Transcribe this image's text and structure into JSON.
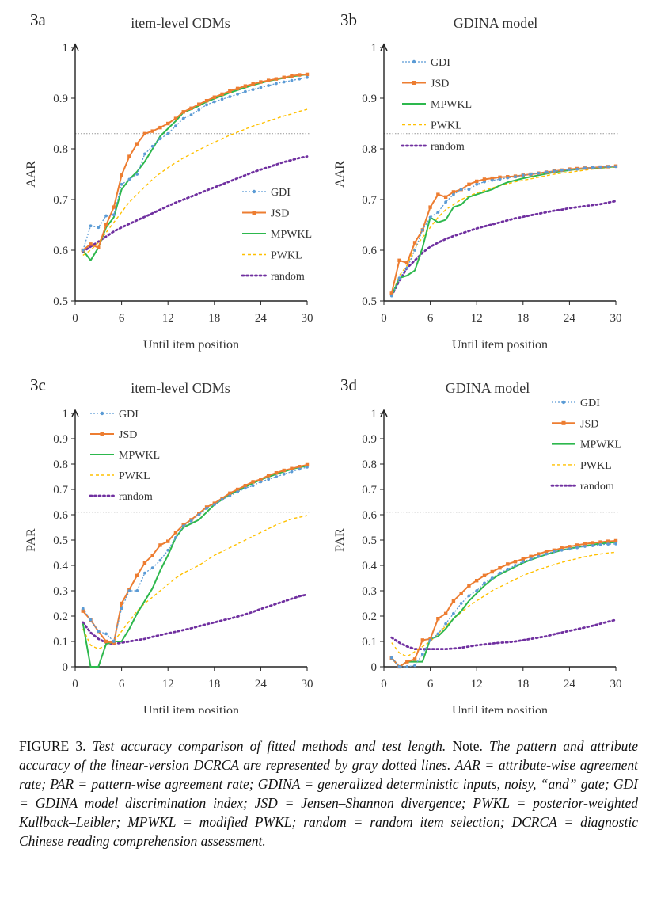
{
  "colors": {
    "GDI": "#5b9bd5",
    "JSD": "#ed7d31",
    "MPWKL": "#2db84d",
    "PWKL": "#ffc000",
    "random": "#7030a0",
    "reference": "#999999"
  },
  "chart_data": [
    {
      "id": "3a",
      "type": "line",
      "label": "3a",
      "title": "item-level CDMs",
      "xlabel": "Until item position",
      "ylabel": "AAR",
      "xlim": [
        0,
        30
      ],
      "ylim": [
        0.5,
        1.0
      ],
      "xticks": [
        "0",
        "6",
        "12",
        "18",
        "24",
        "30"
      ],
      "yticks": [
        "0.5",
        "0.6",
        "0.7",
        "0.8",
        "0.9",
        "1"
      ],
      "reference_line": 0.83,
      "legend_position": "center-right",
      "x": [
        1,
        2,
        3,
        4,
        5,
        6,
        7,
        8,
        9,
        10,
        11,
        12,
        13,
        14,
        15,
        16,
        17,
        18,
        19,
        20,
        21,
        22,
        23,
        24,
        25,
        26,
        27,
        28,
        29,
        30
      ],
      "series": [
        {
          "name": "GDI",
          "values": [
            0.6,
            0.648,
            0.645,
            0.668,
            0.67,
            0.73,
            0.74,
            0.75,
            0.79,
            0.805,
            0.82,
            0.83,
            0.845,
            0.86,
            0.867,
            0.877,
            0.887,
            0.893,
            0.898,
            0.903,
            0.908,
            0.913,
            0.917,
            0.921,
            0.925,
            0.929,
            0.932,
            0.935,
            0.938,
            0.941
          ]
        },
        {
          "name": "JSD",
          "values": [
            0.6,
            0.612,
            0.605,
            0.65,
            0.685,
            0.748,
            0.785,
            0.81,
            0.83,
            0.835,
            0.842,
            0.85,
            0.86,
            0.873,
            0.88,
            0.888,
            0.895,
            0.902,
            0.908,
            0.914,
            0.919,
            0.924,
            0.928,
            0.932,
            0.935,
            0.938,
            0.941,
            0.944,
            0.946,
            0.947
          ]
        },
        {
          "name": "MPWKL",
          "values": [
            0.6,
            0.58,
            0.605,
            0.645,
            0.665,
            0.72,
            0.74,
            0.755,
            0.775,
            0.8,
            0.825,
            0.84,
            0.855,
            0.872,
            0.878,
            0.885,
            0.893,
            0.899,
            0.905,
            0.911,
            0.916,
            0.921,
            0.926,
            0.93,
            0.934,
            0.937,
            0.94,
            0.943,
            0.945,
            0.947
          ]
        },
        {
          "name": "PWKL",
          "values": [
            0.59,
            0.6,
            0.615,
            0.635,
            0.655,
            0.675,
            0.695,
            0.71,
            0.725,
            0.74,
            0.752,
            0.763,
            0.773,
            0.782,
            0.79,
            0.798,
            0.806,
            0.813,
            0.82,
            0.827,
            0.833,
            0.839,
            0.845,
            0.85,
            0.855,
            0.86,
            0.865,
            0.869,
            0.874,
            0.878
          ]
        },
        {
          "name": "random",
          "values": [
            0.597,
            0.607,
            0.617,
            0.627,
            0.637,
            0.645,
            0.652,
            0.659,
            0.666,
            0.673,
            0.68,
            0.687,
            0.694,
            0.7,
            0.706,
            0.712,
            0.718,
            0.724,
            0.73,
            0.736,
            0.742,
            0.748,
            0.754,
            0.759,
            0.764,
            0.769,
            0.774,
            0.778,
            0.782,
            0.785
          ]
        }
      ]
    },
    {
      "id": "3b",
      "type": "line",
      "label": "3b",
      "title": "GDINA model",
      "xlabel": "Until item position",
      "ylabel": "AAR",
      "xlim": [
        0,
        30
      ],
      "ylim": [
        0.5,
        1.0
      ],
      "xticks": [
        "0",
        "6",
        "12",
        "18",
        "24",
        "30"
      ],
      "yticks": [
        "0.5",
        "0.6",
        "0.7",
        "0.8",
        "0.9",
        "1"
      ],
      "reference_line": 0.83,
      "legend_position": "top-left",
      "x": [
        1,
        2,
        3,
        4,
        5,
        6,
        7,
        8,
        9,
        10,
        11,
        12,
        13,
        14,
        15,
        16,
        17,
        18,
        19,
        20,
        21,
        22,
        23,
        24,
        25,
        26,
        27,
        28,
        29,
        30
      ],
      "series": [
        {
          "name": "GDI",
          "values": [
            0.51,
            0.545,
            0.565,
            0.6,
            0.64,
            0.665,
            0.675,
            0.695,
            0.71,
            0.72,
            0.72,
            0.73,
            0.735,
            0.738,
            0.74,
            0.743,
            0.745,
            0.748,
            0.75,
            0.752,
            0.754,
            0.756,
            0.758,
            0.759,
            0.76,
            0.762,
            0.763,
            0.764,
            0.765,
            0.765
          ]
        },
        {
          "name": "JSD",
          "values": [
            0.515,
            0.58,
            0.575,
            0.615,
            0.64,
            0.685,
            0.71,
            0.705,
            0.715,
            0.72,
            0.73,
            0.736,
            0.74,
            0.742,
            0.744,
            0.745,
            0.746,
            0.748,
            0.75,
            0.752,
            0.754,
            0.756,
            0.758,
            0.76,
            0.761,
            0.762,
            0.763,
            0.764,
            0.765,
            0.766
          ]
        },
        {
          "name": "MPWKL",
          "values": [
            0.51,
            0.545,
            0.55,
            0.56,
            0.605,
            0.665,
            0.655,
            0.66,
            0.685,
            0.69,
            0.705,
            0.71,
            0.715,
            0.72,
            0.728,
            0.734,
            0.738,
            0.742,
            0.745,
            0.748,
            0.751,
            0.754,
            0.756,
            0.758,
            0.76,
            0.761,
            0.762,
            0.763,
            0.764,
            0.765
          ]
        },
        {
          "name": "PWKL",
          "values": [
            0.51,
            0.55,
            0.57,
            0.605,
            0.625,
            0.645,
            0.665,
            0.68,
            0.69,
            0.7,
            0.707,
            0.713,
            0.718,
            0.723,
            0.727,
            0.731,
            0.735,
            0.738,
            0.741,
            0.744,
            0.747,
            0.75,
            0.752,
            0.754,
            0.756,
            0.758,
            0.76,
            0.762,
            0.763,
            0.764
          ]
        },
        {
          "name": "random",
          "values": [
            0.51,
            0.54,
            0.565,
            0.58,
            0.595,
            0.607,
            0.615,
            0.622,
            0.628,
            0.633,
            0.638,
            0.643,
            0.647,
            0.651,
            0.655,
            0.659,
            0.663,
            0.666,
            0.669,
            0.672,
            0.675,
            0.678,
            0.68,
            0.683,
            0.685,
            0.687,
            0.689,
            0.691,
            0.694,
            0.697
          ]
        }
      ]
    },
    {
      "id": "3c",
      "type": "line",
      "label": "3c",
      "title": "item-level CDMs",
      "xlabel": "Until item position",
      "ylabel": "PAR",
      "xlim": [
        0,
        30
      ],
      "ylim": [
        0,
        1.0
      ],
      "xticks": [
        "0",
        "6",
        "12",
        "18",
        "24",
        "30"
      ],
      "yticks": [
        "0",
        "0.1",
        "0.2",
        "0.3",
        "0.4",
        "0.5",
        "0.6",
        "0.7",
        "0.8",
        "0.9",
        "1"
      ],
      "reference_line": 0.61,
      "legend_position": "top-left",
      "x": [
        1,
        2,
        3,
        4,
        5,
        6,
        7,
        8,
        9,
        10,
        11,
        12,
        13,
        14,
        15,
        16,
        17,
        18,
        19,
        20,
        21,
        22,
        23,
        24,
        25,
        26,
        27,
        28,
        29,
        30
      ],
      "series": [
        {
          "name": "GDI",
          "values": [
            0.23,
            0.185,
            0.14,
            0.13,
            0.1,
            0.23,
            0.3,
            0.3,
            0.37,
            0.39,
            0.42,
            0.46,
            0.51,
            0.555,
            0.575,
            0.6,
            0.625,
            0.64,
            0.66,
            0.675,
            0.69,
            0.705,
            0.715,
            0.73,
            0.74,
            0.75,
            0.76,
            0.77,
            0.78,
            0.788
          ]
        },
        {
          "name": "JSD",
          "values": [
            0.22,
            0.185,
            0.14,
            0.1,
            0.095,
            0.25,
            0.305,
            0.36,
            0.41,
            0.44,
            0.48,
            0.495,
            0.53,
            0.56,
            0.58,
            0.605,
            0.63,
            0.645,
            0.665,
            0.685,
            0.7,
            0.715,
            0.73,
            0.74,
            0.755,
            0.765,
            0.775,
            0.782,
            0.79,
            0.797
          ]
        },
        {
          "name": "MPWKL",
          "values": [
            0.17,
            0.0,
            0.0,
            0.09,
            0.1,
            0.1,
            0.15,
            0.21,
            0.26,
            0.31,
            0.38,
            0.44,
            0.51,
            0.55,
            0.565,
            0.58,
            0.61,
            0.64,
            0.66,
            0.68,
            0.695,
            0.71,
            0.725,
            0.738,
            0.75,
            0.76,
            0.77,
            0.78,
            0.787,
            0.793
          ]
        },
        {
          "name": "PWKL",
          "values": [
            0.15,
            0.085,
            0.07,
            0.085,
            0.1,
            0.14,
            0.18,
            0.22,
            0.25,
            0.275,
            0.3,
            0.325,
            0.35,
            0.37,
            0.385,
            0.4,
            0.42,
            0.44,
            0.455,
            0.47,
            0.485,
            0.5,
            0.515,
            0.53,
            0.545,
            0.56,
            0.572,
            0.584,
            0.59,
            0.597
          ]
        },
        {
          "name": "random",
          "values": [
            0.175,
            0.135,
            0.11,
            0.095,
            0.09,
            0.095,
            0.1,
            0.105,
            0.11,
            0.118,
            0.125,
            0.132,
            0.138,
            0.145,
            0.152,
            0.16,
            0.168,
            0.175,
            0.183,
            0.19,
            0.198,
            0.207,
            0.217,
            0.228,
            0.238,
            0.248,
            0.258,
            0.268,
            0.278,
            0.285
          ]
        }
      ]
    },
    {
      "id": "3d",
      "type": "line",
      "label": "3d",
      "title": "GDINA model",
      "xlabel": "Until item position",
      "ylabel": "PAR",
      "xlim": [
        0,
        30
      ],
      "ylim": [
        0,
        1.0
      ],
      "xticks": [
        "0",
        "6",
        "12",
        "18",
        "24",
        "30"
      ],
      "yticks": [
        "0",
        "0.1",
        "0.2",
        "0.3",
        "0.4",
        "0.5",
        "0.6",
        "0.7",
        "0.8",
        "0.9",
        "1"
      ],
      "reference_line": 0.61,
      "legend_position": "top-right",
      "x": [
        1,
        2,
        3,
        4,
        5,
        6,
        7,
        8,
        9,
        10,
        11,
        12,
        13,
        14,
        15,
        16,
        17,
        18,
        19,
        20,
        21,
        22,
        23,
        24,
        25,
        26,
        27,
        28,
        29,
        30
      ],
      "series": [
        {
          "name": "GDI",
          "values": [
            0.035,
            0.0,
            0.0,
            0.005,
            0.05,
            0.105,
            0.13,
            0.17,
            0.21,
            0.25,
            0.28,
            0.3,
            0.33,
            0.35,
            0.37,
            0.385,
            0.4,
            0.415,
            0.425,
            0.435,
            0.445,
            0.455,
            0.46,
            0.465,
            0.47,
            0.475,
            0.478,
            0.482,
            0.484,
            0.485
          ]
        },
        {
          "name": "JSD",
          "values": [
            0.035,
            0.0,
            0.02,
            0.03,
            0.105,
            0.11,
            0.19,
            0.21,
            0.26,
            0.29,
            0.32,
            0.34,
            0.36,
            0.375,
            0.39,
            0.405,
            0.415,
            0.425,
            0.435,
            0.445,
            0.455,
            0.46,
            0.468,
            0.474,
            0.48,
            0.485,
            0.489,
            0.492,
            0.495,
            0.497
          ]
        },
        {
          "name": "MPWKL",
          "values": [
            0.035,
            0.0,
            0.02,
            0.02,
            0.02,
            0.11,
            0.12,
            0.15,
            0.19,
            0.22,
            0.26,
            0.29,
            0.32,
            0.345,
            0.365,
            0.38,
            0.395,
            0.41,
            0.422,
            0.433,
            0.443,
            0.452,
            0.46,
            0.466,
            0.472,
            0.477,
            0.482,
            0.486,
            0.489,
            0.492
          ]
        },
        {
          "name": "PWKL",
          "values": [
            0.095,
            0.055,
            0.04,
            0.06,
            0.08,
            0.1,
            0.13,
            0.16,
            0.19,
            0.215,
            0.24,
            0.26,
            0.28,
            0.3,
            0.315,
            0.33,
            0.345,
            0.36,
            0.372,
            0.383,
            0.393,
            0.403,
            0.412,
            0.42,
            0.427,
            0.434,
            0.44,
            0.445,
            0.449,
            0.452
          ]
        },
        {
          "name": "random",
          "values": [
            0.115,
            0.095,
            0.08,
            0.07,
            0.07,
            0.07,
            0.07,
            0.07,
            0.072,
            0.075,
            0.08,
            0.085,
            0.088,
            0.092,
            0.095,
            0.097,
            0.1,
            0.105,
            0.11,
            0.115,
            0.12,
            0.128,
            0.135,
            0.142,
            0.148,
            0.155,
            0.162,
            0.17,
            0.178,
            0.185
          ]
        }
      ]
    }
  ],
  "caption": {
    "prefix": "FIGURE 3. ",
    "title": "Test accuracy comparison of fitted methods and test length.",
    "note_label": " Note. ",
    "note_text": "The pattern and attribute accuracy of the linear-version DCRCA are represented by gray dotted lines. AAR = attribute-wise agreement rate; PAR = pattern-wise agreement rate; GDINA = generalized deterministic inputs, noisy, “and” gate; GDI = GDINA model discrimination index; JSD = Jensen–Shannon divergence; PWKL = posterior-weighted Kullback–Leibler; MPWKL = modified PWKL; random = random item selection; DCRCA = diagnostic Chinese reading comprehension assessment."
  }
}
